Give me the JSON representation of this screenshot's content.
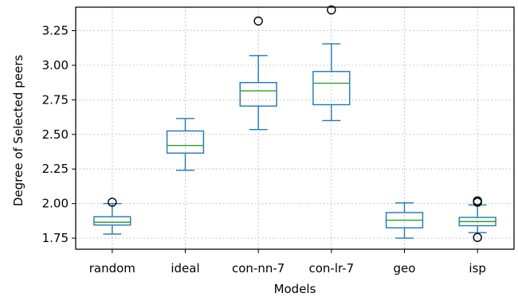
{
  "chart_data": {
    "type": "box",
    "xlabel": "Models",
    "ylabel": "Degree of Selected peers",
    "ylim": [
      1.67,
      3.42
    ],
    "yticks": [
      "1.75",
      "2.00",
      "2.25",
      "2.50",
      "2.75",
      "3.00",
      "3.25"
    ],
    "grid": true,
    "categories": [
      "random",
      "ideal",
      "con-nn-7",
      "con-lr-7",
      "geo",
      "isp"
    ],
    "boxes": [
      {
        "category": "random",
        "whisker_low": 1.78,
        "q1": 1.845,
        "median": 1.865,
        "q3": 1.905,
        "whisker_high": 2.0,
        "outliers": [
          2.01
        ]
      },
      {
        "category": "ideal",
        "whisker_low": 2.24,
        "q1": 2.365,
        "median": 2.42,
        "q3": 2.525,
        "whisker_high": 2.615,
        "outliers": []
      },
      {
        "category": "con-nn-7",
        "whisker_low": 2.535,
        "q1": 2.705,
        "median": 2.815,
        "q3": 2.875,
        "whisker_high": 3.07,
        "outliers": [
          3.32
        ]
      },
      {
        "category": "con-lr-7",
        "whisker_low": 2.6,
        "q1": 2.715,
        "median": 2.87,
        "q3": 2.955,
        "whisker_high": 3.155,
        "outliers": [
          3.4
        ]
      },
      {
        "category": "geo",
        "whisker_low": 1.75,
        "q1": 1.825,
        "median": 1.88,
        "q3": 1.935,
        "whisker_high": 2.005,
        "outliers": []
      },
      {
        "category": "isp",
        "whisker_low": 1.79,
        "q1": 1.84,
        "median": 1.87,
        "q3": 1.9,
        "whisker_high": 1.99,
        "outliers": [
          2.01,
          2.02,
          1.755
        ]
      }
    ],
    "colors": {
      "box": "#1f77b4",
      "median": "#2ca02c",
      "grid": "#b0b0b0",
      "outlier": "#000000"
    }
  }
}
